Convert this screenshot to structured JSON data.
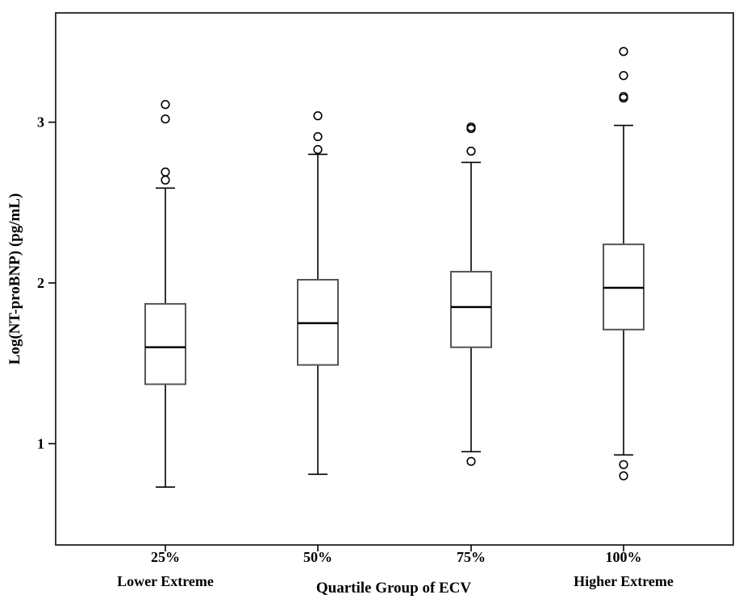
{
  "chart_data": {
    "type": "box",
    "ylabel": "Log(NT-proBNP) (pg/mL)",
    "xlabel": "Quartile Group of ECV",
    "yticks": [
      1,
      2,
      3
    ],
    "ylim": [
      0.37,
      3.68
    ],
    "categories": [
      {
        "label": "25%",
        "sublabel": "Lower Extreme"
      },
      {
        "label": "50%",
        "sublabel": ""
      },
      {
        "label": "75%",
        "sublabel": ""
      },
      {
        "label": "100%",
        "sublabel": "Higher Extreme"
      }
    ],
    "boxes": [
      {
        "whisker_low": 0.73,
        "q1": 1.37,
        "median": 1.6,
        "q3": 1.87,
        "whisker_high": 2.59,
        "outliers": [
          2.64,
          2.69,
          3.02,
          3.11
        ]
      },
      {
        "whisker_low": 0.81,
        "q1": 1.49,
        "median": 1.75,
        "q3": 2.02,
        "whisker_high": 2.8,
        "outliers": [
          2.83,
          2.91,
          3.04
        ]
      },
      {
        "whisker_low": 0.95,
        "q1": 1.6,
        "median": 1.85,
        "q3": 2.07,
        "whisker_high": 2.75,
        "outliers": [
          0.89,
          2.82,
          2.96,
          2.97
        ]
      },
      {
        "whisker_low": 0.93,
        "q1": 1.71,
        "median": 1.97,
        "q3": 2.24,
        "whisker_high": 2.98,
        "outliers": [
          0.8,
          0.87,
          3.15,
          3.16,
          3.29,
          3.44
        ]
      }
    ]
  }
}
